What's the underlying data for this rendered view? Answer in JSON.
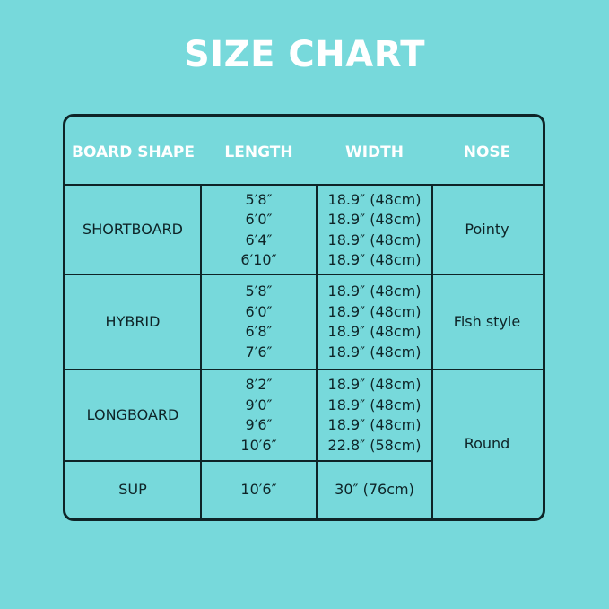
{
  "title": "SIZE CHART",
  "headers": [
    "BOARD SHAPE",
    "LENGTH",
    "WIDTH",
    "NOSE"
  ],
  "rows": [
    {
      "shape": "SHORTBOARD",
      "lengths": [
        "5′8″",
        "6′0″",
        "6′4″",
        "6′10″"
      ],
      "widths": [
        "18.9″ (48cm)",
        "18.9″ (48cm)",
        "18.9″ (48cm)",
        "18.9″ (48cm)"
      ],
      "nose": "Pointy"
    },
    {
      "shape": "HYBRID",
      "lengths": [
        "5′8″",
        "6′0″",
        "6′8″",
        "7′6″"
      ],
      "widths": [
        "18.9″ (48cm)",
        "18.9″ (48cm)",
        "18.9″ (48cm)",
        "18.9″ (48cm)"
      ],
      "nose": "Fish style"
    },
    {
      "shape": "LONGBOARD",
      "lengths": [
        "8′2″",
        "9′0″",
        "9′6″",
        "10′6″"
      ],
      "widths": [
        "18.9″ (48cm)",
        "18.9″ (48cm)",
        "18.9″ (48cm)",
        "22.8″ (58cm)"
      ],
      "nose": "Round"
    },
    {
      "shape": "SUP",
      "lengths": [
        "10′6″"
      ],
      "widths": [
        "30″ (76cm)"
      ]
    }
  ],
  "colors": {
    "background": "#77d9db",
    "border": "#0e2427",
    "header_text": "#ffffff"
  }
}
